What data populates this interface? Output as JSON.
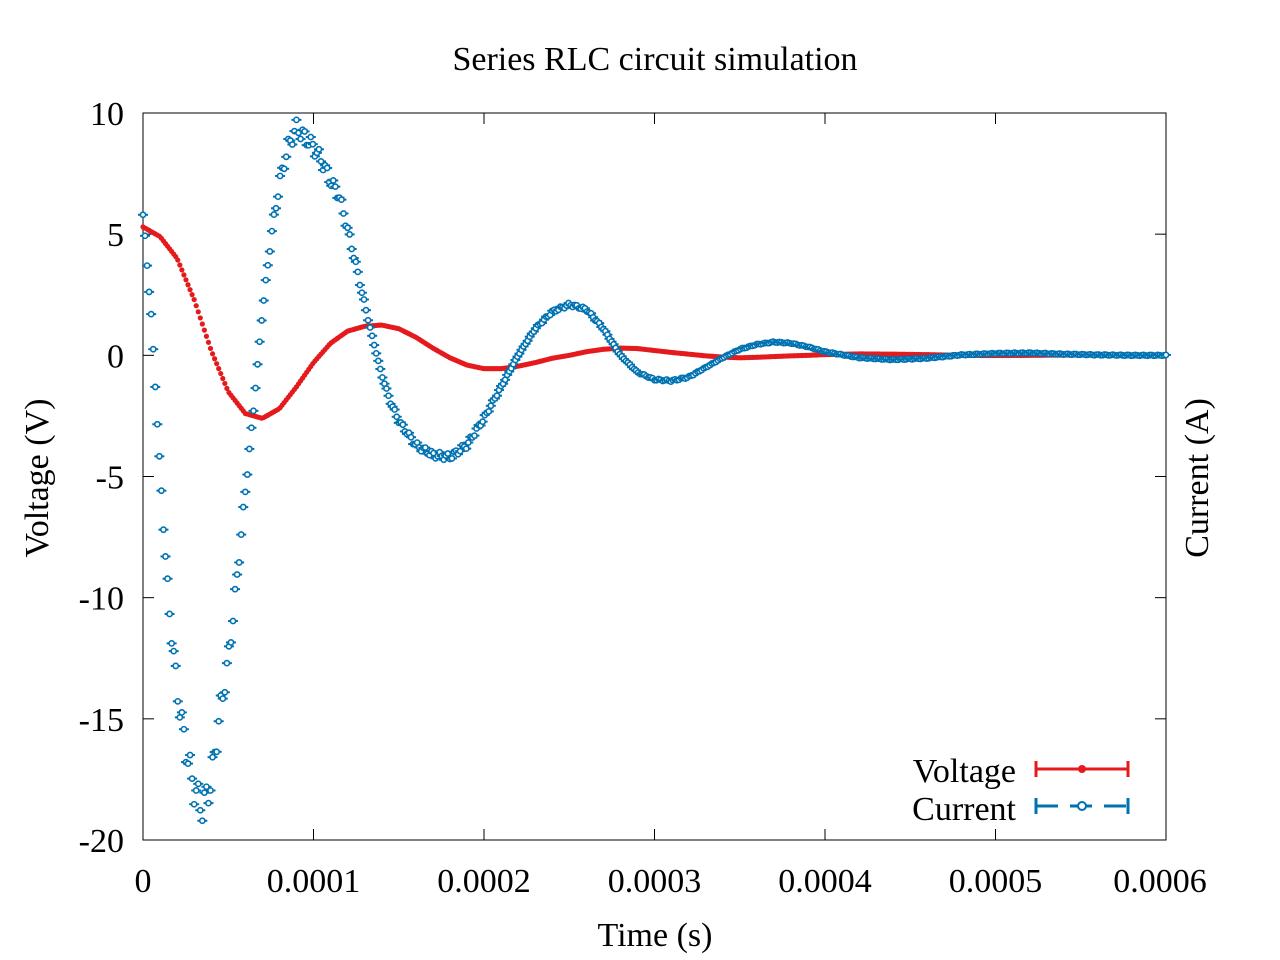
{
  "chart_data": {
    "type": "scatter",
    "title": "Series RLC circuit simulation",
    "xlabel": "Time (s)",
    "ylabel": "Voltage (V)",
    "y2label": "Current (A)",
    "xlim": [
      0,
      0.0006
    ],
    "ylim": [
      -20,
      10
    ],
    "xticks": [
      {
        "value": 0,
        "label": "0"
      },
      {
        "value": 0.0001,
        "label": "0.0001"
      },
      {
        "value": 0.0002,
        "label": "0.0002"
      },
      {
        "value": 0.0003,
        "label": "0.0003"
      },
      {
        "value": 0.0004,
        "label": "0.0004"
      },
      {
        "value": 0.0005,
        "label": "0.0005"
      },
      {
        "value": 0.0006,
        "label": "0.0006"
      }
    ],
    "yticks": [
      {
        "value": 10,
        "label": "10"
      },
      {
        "value": 5,
        "label": "5"
      },
      {
        "value": 0,
        "label": "0"
      },
      {
        "value": -5,
        "label": "-5"
      },
      {
        "value": -10,
        "label": "-10"
      },
      {
        "value": -15,
        "label": "-15"
      },
      {
        "value": -20,
        "label": "-20"
      }
    ],
    "grid": false,
    "legend": "bottom-right",
    "series": [
      {
        "name": "Voltage",
        "color": "#e41a1c",
        "marker": "filled-circle",
        "x": [
          0,
          1e-05,
          2e-05,
          3e-05,
          4e-05,
          5e-05,
          6e-05,
          7e-05,
          8e-05,
          9e-05,
          0.0001,
          0.00011,
          0.00012,
          0.00013,
          0.00014,
          0.00015,
          0.00016,
          0.00017,
          0.00018,
          0.00019,
          0.0002,
          0.00021,
          0.00022,
          0.00023,
          0.00024,
          0.00025,
          0.00026,
          0.00027,
          0.00028,
          0.00029,
          0.0003,
          0.00031,
          0.00032,
          0.00033,
          0.00034,
          0.00035,
          0.00036,
          0.00037,
          0.00038,
          0.00039,
          0.0004,
          0.00042,
          0.00044,
          0.00046,
          0.00048,
          0.0005,
          0.00052,
          0.00054,
          0.00056,
          0.00058,
          0.0006
        ],
        "y": [
          5.3,
          4.9,
          4.0,
          2.3,
          0.2,
          -1.5,
          -2.4,
          -2.6,
          -2.2,
          -1.3,
          -0.3,
          0.5,
          1.0,
          1.2,
          1.25,
          1.1,
          0.75,
          0.3,
          -0.1,
          -0.4,
          -0.55,
          -0.55,
          -0.45,
          -0.3,
          -0.12,
          0.0,
          0.15,
          0.25,
          0.3,
          0.28,
          0.2,
          0.12,
          0.05,
          -0.02,
          -0.07,
          -0.1,
          -0.08,
          -0.05,
          -0.02,
          0.0,
          0.03,
          0.06,
          0.05,
          0.03,
          0.0,
          -0.01,
          0.0,
          0.01,
          0.02,
          0.01,
          0.0
        ]
      },
      {
        "name": "Current",
        "color": "#0072b2",
        "marker": "open-circle",
        "x": [
          0,
          5e-06,
          1e-05,
          1.5e-05,
          2e-05,
          2.5e-05,
          3e-05,
          3.5e-05,
          4e-05,
          4.5e-05,
          5e-05,
          5.5e-05,
          6e-05,
          6.5e-05,
          7e-05,
          7.5e-05,
          8e-05,
          8.5e-05,
          9e-05,
          9.5e-05,
          0.0001,
          0.000105,
          0.00011,
          0.000115,
          0.00012,
          0.000125,
          0.00013,
          0.000135,
          0.00014,
          0.000145,
          0.00015,
          0.00016,
          0.00017,
          0.00018,
          0.00019,
          0.0002,
          0.00021,
          0.00022,
          0.00023,
          0.00024,
          0.00025,
          0.00026,
          0.00027,
          0.00028,
          0.00029,
          0.0003,
          0.00031,
          0.00032,
          0.00033,
          0.00034,
          0.00035,
          0.00036,
          0.00037,
          0.00038,
          0.00039,
          0.0004,
          0.00042,
          0.00044,
          0.00046,
          0.00048,
          0.0005,
          0.00052,
          0.00054,
          0.00056,
          0.00058,
          0.0006
        ],
        "y": [
          5.8,
          1.5,
          -4.8,
          -10.2,
          -13.8,
          -16.2,
          -17.9,
          -18.7,
          -17.6,
          -14.8,
          -12.6,
          -9.3,
          -5.6,
          -2.1,
          1.8,
          4.8,
          7.1,
          8.6,
          9.4,
          9.0,
          8.6,
          8.0,
          7.2,
          6.6,
          5.2,
          3.7,
          2.1,
          0.6,
          -0.8,
          -1.9,
          -2.7,
          -3.7,
          -4.1,
          -4.2,
          -3.7,
          -2.6,
          -1.3,
          0.0,
          1.1,
          1.8,
          2.1,
          1.9,
          1.1,
          0.0,
          -0.7,
          -1.0,
          -1.05,
          -0.9,
          -0.5,
          -0.1,
          0.25,
          0.45,
          0.55,
          0.5,
          0.35,
          0.15,
          -0.1,
          -0.18,
          -0.12,
          0.02,
          0.08,
          0.1,
          0.05,
          0.02,
          0.0,
          0.0
        ]
      }
    ]
  }
}
